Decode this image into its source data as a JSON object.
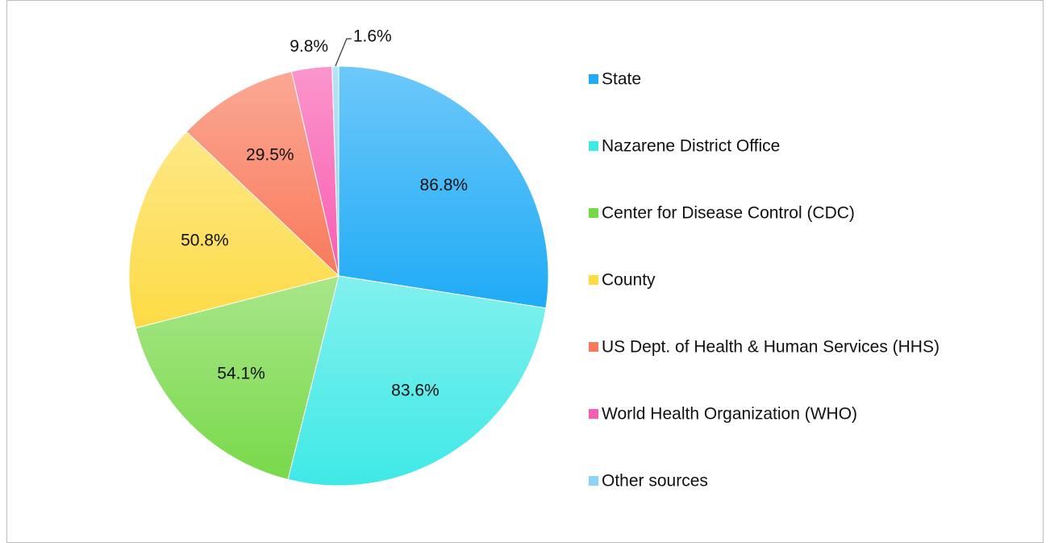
{
  "chart_data": {
    "type": "pie",
    "categories": [
      "State",
      "Nazarene District Office",
      "Center for Disease Control (CDC)",
      "County",
      "US Dept. of Health & Human Services (HHS)",
      "World Health Organization (WHO)",
      "Other sources"
    ],
    "values": [
      86.8,
      83.6,
      54.1,
      50.8,
      29.5,
      9.8,
      1.6
    ],
    "value_labels": [
      "86.8%",
      "83.6%",
      "54.1%",
      "50.8%",
      "29.5%",
      "9.8%",
      "1.6%"
    ],
    "colors": [
      "#1fabf6",
      "#3fe9e6",
      "#79d94a",
      "#fddb45",
      "#f9795b",
      "#f95db2",
      "#8fd2f7"
    ],
    "legend": "right"
  }
}
